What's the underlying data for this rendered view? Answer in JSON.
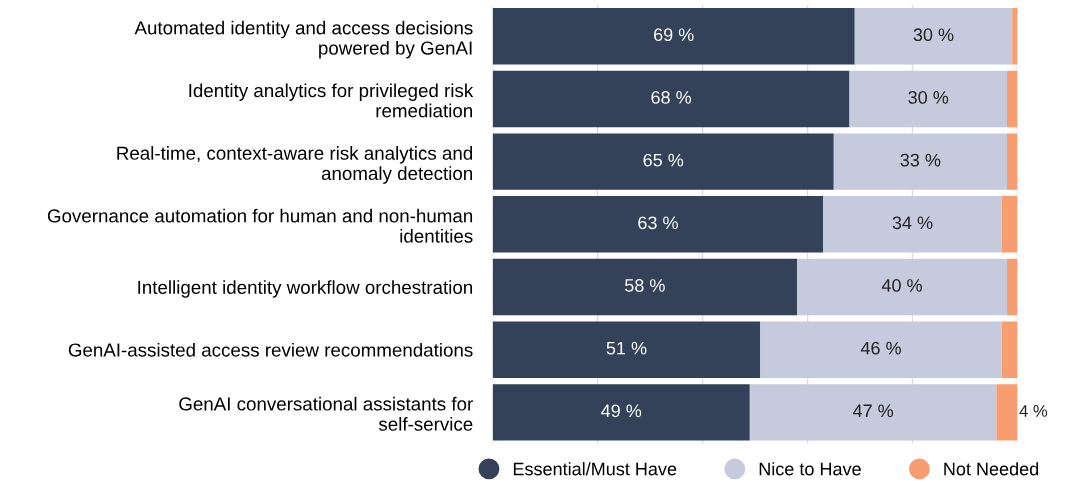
{
  "chart_data": {
    "type": "bar",
    "orientation": "horizontal",
    "stacked": true,
    "categories": [
      "Automated identity and access decisions powered by GenAI",
      "Identity analytics for privileged risk remediation",
      "Real-time, context-aware risk analytics and anomaly detection",
      "Governance automation for human and non-human identities",
      "Intelligent identity workflow orchestration",
      "GenAI-assisted access review recommendations",
      "GenAI conversational assistants for self-service"
    ],
    "series": [
      {
        "name": "Essential/Must Have",
        "color": "#334259",
        "values": [
          69,
          68,
          65,
          63,
          58,
          51,
          49
        ],
        "value_labels": [
          "69 %",
          "68 %",
          "65 %",
          "63 %",
          "58 %",
          "51 %",
          "49 %"
        ]
      },
      {
        "name": "Nice to Have",
        "color": "#c5cbdd",
        "values": [
          30,
          30,
          33,
          34,
          40,
          46,
          47
        ],
        "value_labels": [
          "30 %",
          "30 %",
          "33 %",
          "34 %",
          "40 %",
          "46 %",
          "47 %"
        ]
      },
      {
        "name": "Not Needed",
        "color": "#f79d70",
        "values": [
          1,
          2,
          2,
          3,
          2,
          3,
          4
        ],
        "value_labels": [
          null,
          null,
          null,
          null,
          null,
          null,
          "4 %"
        ]
      }
    ],
    "xlim": [
      0,
      100
    ],
    "xticks": [
      0,
      20,
      40,
      60,
      80,
      100
    ],
    "tick_labels": "y",
    "grid": "x",
    "legend": "bottom",
    "marker": "circle"
  }
}
